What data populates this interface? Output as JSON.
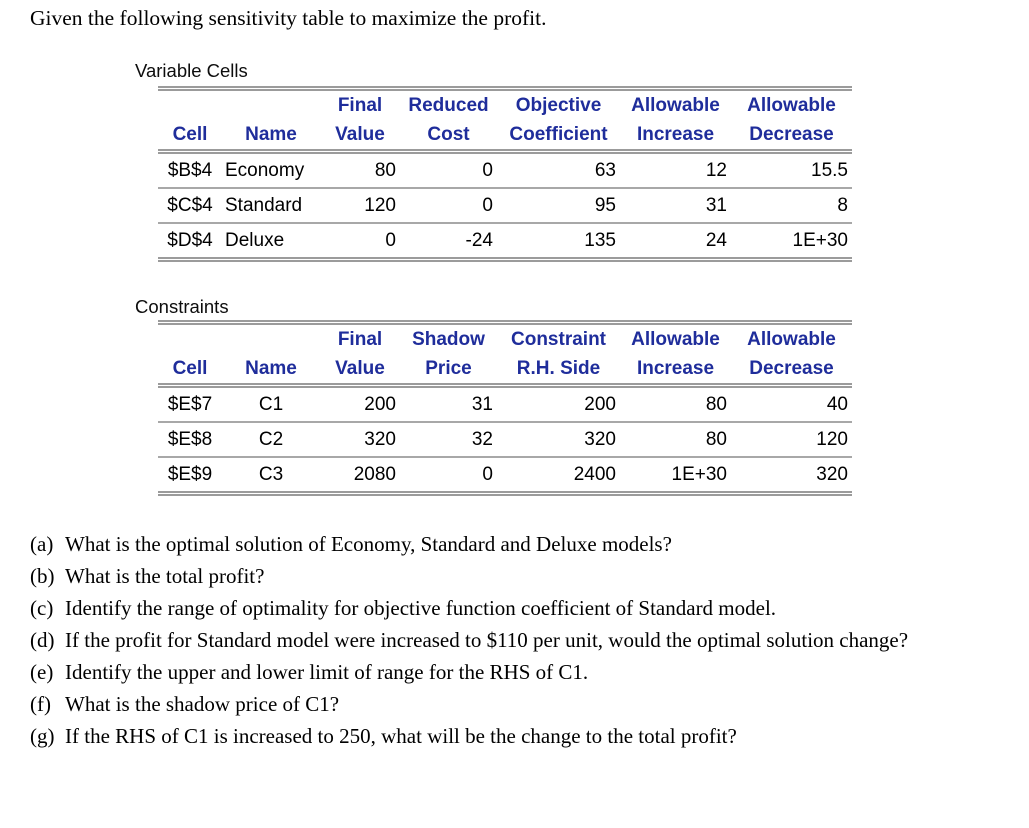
{
  "title": "Given the following sensitivity table to maximize the profit.",
  "colors": {
    "header_text": "#1f2d9b",
    "body_text": "#000000",
    "rule_gray": "#9b9b9b"
  },
  "variable_cells": {
    "label": "Variable Cells",
    "headers": [
      {
        "l1": "",
        "l2": "Cell"
      },
      {
        "l1": "",
        "l2": "Name"
      },
      {
        "l1": "Final",
        "l2": "Value"
      },
      {
        "l1": "Reduced",
        "l2": "Cost"
      },
      {
        "l1": "Objective",
        "l2": "Coefficient"
      },
      {
        "l1": "Allowable",
        "l2": "Increase"
      },
      {
        "l1": "Allowable",
        "l2": "Decrease"
      }
    ],
    "rows": [
      {
        "cell": "$B$4",
        "name": "Economy",
        "final_value": "80",
        "reduced_cost": "0",
        "objective_coefficient": "63",
        "allowable_increase": "12",
        "allowable_decrease": "15.5"
      },
      {
        "cell": "$C$4",
        "name": "Standard",
        "final_value": "120",
        "reduced_cost": "0",
        "objective_coefficient": "95",
        "allowable_increase": "31",
        "allowable_decrease": "8"
      },
      {
        "cell": "$D$4",
        "name": "Deluxe",
        "final_value": "0",
        "reduced_cost": "-24",
        "objective_coefficient": "135",
        "allowable_increase": "24",
        "allowable_decrease": "1E+30"
      }
    ]
  },
  "constraints": {
    "label": "Constraints",
    "headers": [
      {
        "l1": "",
        "l2": "Cell"
      },
      {
        "l1": "",
        "l2": "Name"
      },
      {
        "l1": "Final",
        "l2": "Value"
      },
      {
        "l1": "Shadow",
        "l2": "Price"
      },
      {
        "l1": "Constraint",
        "l2": "R.H. Side"
      },
      {
        "l1": "Allowable",
        "l2": "Increase"
      },
      {
        "l1": "Allowable",
        "l2": "Decrease"
      }
    ],
    "rows": [
      {
        "cell": "$E$7",
        "name": "C1",
        "final_value": "200",
        "shadow_price": "31",
        "rhs_side": "200",
        "allowable_increase": "80",
        "allowable_decrease": "40"
      },
      {
        "cell": "$E$8",
        "name": "C2",
        "final_value": "320",
        "shadow_price": "32",
        "rhs_side": "320",
        "allowable_increase": "80",
        "allowable_decrease": "120"
      },
      {
        "cell": "$E$9",
        "name": "C3",
        "final_value": "2080",
        "shadow_price": "0",
        "rhs_side": "2400",
        "allowable_increase": "1E+30",
        "allowable_decrease": "320"
      }
    ]
  },
  "questions": [
    {
      "label": "(a)",
      "text": "What is the optimal solution of Economy, Standard and Deluxe models?"
    },
    {
      "label": "(b)",
      "text": "What is the total profit?"
    },
    {
      "label": "(c)",
      "text": "Identify the range of optimality for objective function coefficient of Standard model."
    },
    {
      "label": "(d)",
      "text": "If the profit for Standard model were increased to $110 per unit, would the optimal solution change?"
    },
    {
      "label": "(e)",
      "text": "Identify the upper and lower limit of range for the RHS of C1."
    },
    {
      "label": "(f)",
      "text": "What is the shadow price of C1?"
    },
    {
      "label": "(g)",
      "text": "If the RHS of C1 is increased to 250, what will be the change to the total profit?"
    }
  ]
}
